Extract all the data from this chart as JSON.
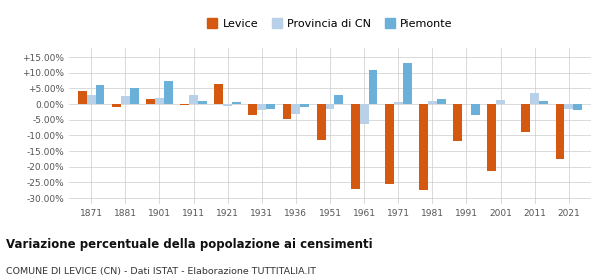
{
  "years": [
    1871,
    1881,
    1901,
    1911,
    1921,
    1931,
    1936,
    1951,
    1961,
    1971,
    1981,
    1991,
    2001,
    2011,
    2021
  ],
  "levice": [
    4.2,
    -1.0,
    1.5,
    -0.3,
    6.3,
    -3.5,
    -4.8,
    -11.5,
    -27.0,
    -25.5,
    -27.5,
    -11.8,
    -21.5,
    -9.0,
    -17.5
  ],
  "provincia_cn": [
    3.0,
    2.5,
    2.0,
    2.8,
    -0.5,
    -2.0,
    -3.2,
    -1.5,
    -6.5,
    0.5,
    1.0,
    0.0,
    1.2,
    3.5,
    -1.5
  ],
  "piemonte": [
    6.0,
    5.2,
    7.5,
    1.0,
    0.8,
    -1.5,
    -0.8,
    3.0,
    11.0,
    13.0,
    1.5,
    -3.5,
    0.0,
    1.0,
    -2.0
  ],
  "color_levice": "#d4580f",
  "color_provincia": "#b8d0e8",
  "color_piemonte": "#6ab0d8",
  "title": "Variazione percentuale della popolazione ai censimenti",
  "subtitle": "COMUNE DI LEVICE (CN) - Dati ISTAT - Elaborazione TUTTITALIA.IT",
  "ylim": [
    -32,
    18
  ],
  "yticks": [
    -30,
    -25,
    -20,
    -15,
    -10,
    -5,
    0,
    5,
    10,
    15
  ],
  "bar_width": 0.26,
  "legend_labels": [
    "Levice",
    "Provincia di CN",
    "Piemonte"
  ]
}
